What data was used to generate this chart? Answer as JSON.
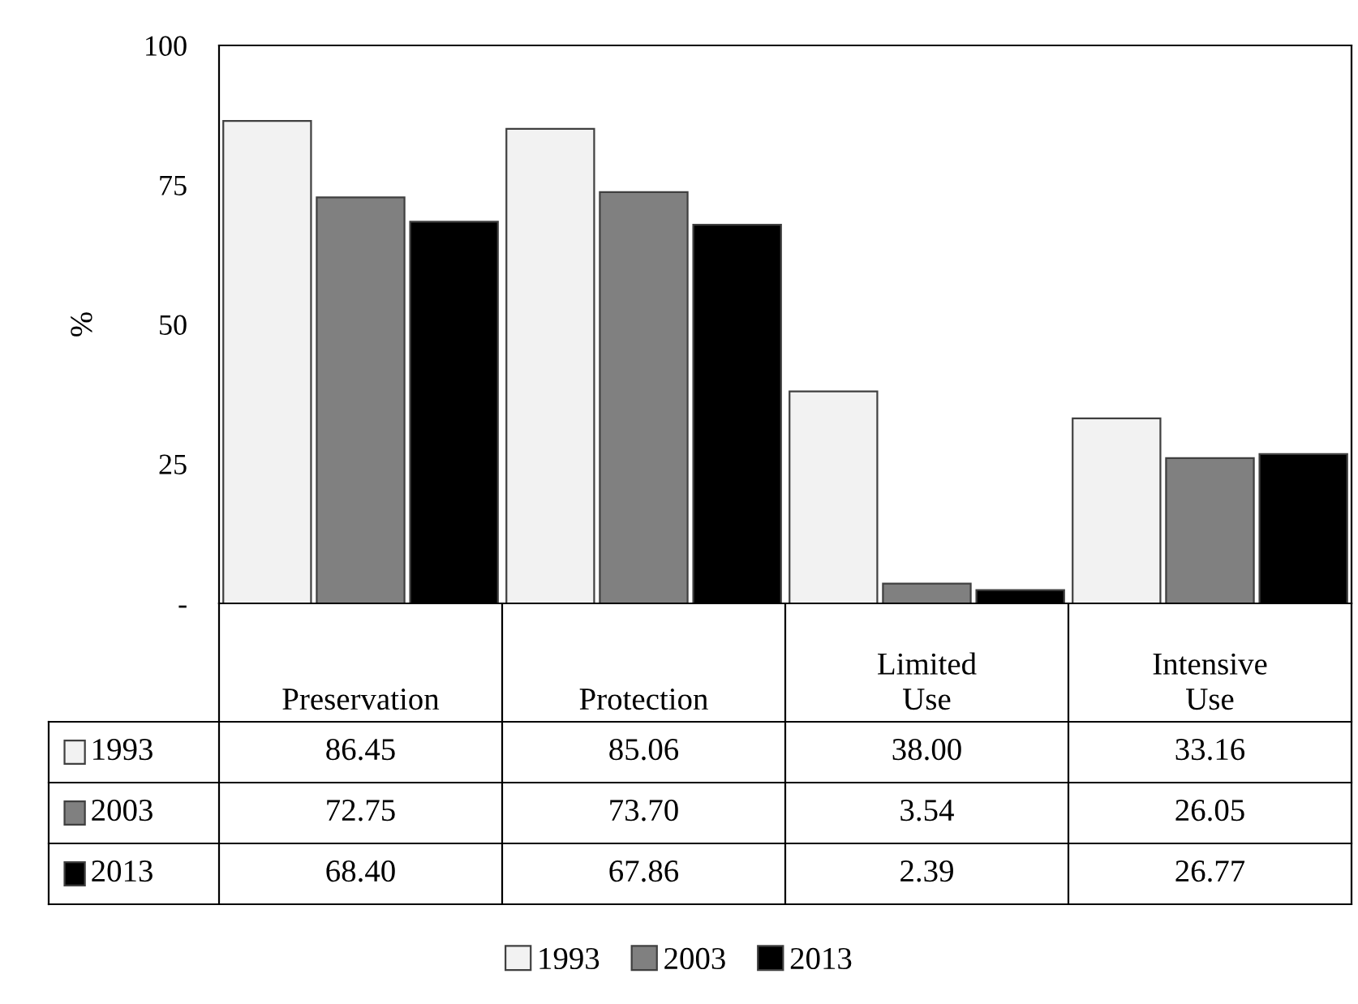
{
  "chart_data": {
    "type": "bar",
    "ylabel": "%",
    "categories": [
      "Preservation",
      "Protection",
      "Limited Use",
      "Intensive Use"
    ],
    "series": [
      {
        "name": "1993",
        "color": "#f2f2f2",
        "values": [
          86.45,
          85.06,
          38.0,
          33.16
        ],
        "value_labels": [
          "86.45",
          "85.06",
          "38.00",
          "33.16"
        ]
      },
      {
        "name": "2003",
        "color": "#808080",
        "values": [
          72.75,
          73.7,
          3.54,
          26.05
        ],
        "value_labels": [
          "72.75",
          "73.70",
          "3.54",
          "26.05"
        ]
      },
      {
        "name": "2013",
        "color": "#000000",
        "values": [
          68.4,
          67.86,
          2.39,
          26.77
        ],
        "value_labels": [
          "68.40",
          "67.86",
          "2.39",
          "26.77"
        ]
      }
    ],
    "ylim": [
      0,
      100
    ],
    "yticks": [
      {
        "value": 0,
        "label": "-"
      },
      25,
      50,
      75,
      100
    ],
    "grid": false,
    "legend": "bottom"
  }
}
